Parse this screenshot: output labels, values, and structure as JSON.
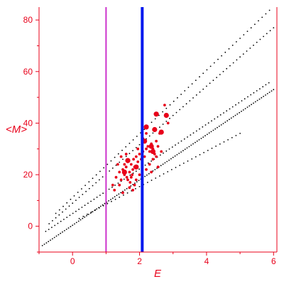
{
  "chart_data": {
    "type": "scatter",
    "xlabel": "E",
    "ylabel": "<M>",
    "xlim": [
      -1.0,
      6.1
    ],
    "ylim": [
      -10,
      85
    ],
    "x_ticks": [
      0,
      2,
      4,
      6
    ],
    "y_ticks": [
      0,
      20,
      40,
      60,
      80
    ],
    "grid": false,
    "legend": "none",
    "colors": {
      "axes": "#e8001a",
      "background_points": "#000000",
      "highlight_points": "#e8001a",
      "line_magenta": "#cc33cc",
      "line_blue": "#0018ee"
    },
    "vertical_lines": [
      {
        "x": 1.0,
        "color": "#cc33cc",
        "style": "thin"
      },
      {
        "x": 2.08,
        "color": "#0018ee",
        "style": "thick"
      }
    ],
    "series": [
      {
        "marker": "small-dot",
        "color": "#000000",
        "bands": [
          {
            "x_start": -0.9,
            "x_end": 6.0,
            "y_start": -7.5,
            "y_end": 53.0,
            "step": 0.06
          },
          {
            "x_start": -0.8,
            "x_end": 5.9,
            "y_start": -2.0,
            "y_end": 56.0,
            "step": 0.09
          },
          {
            "x_start": -0.7,
            "x_end": 6.0,
            "y_start": 1.0,
            "y_end": 77.0,
            "step": 0.1
          },
          {
            "x_start": -0.5,
            "x_end": 5.9,
            "y_start": 5.0,
            "y_end": 84.0,
            "step": 0.11
          },
          {
            "x_start": 0.2,
            "x_end": 5.0,
            "y_start": 3.0,
            "y_end": 36.0,
            "step": 0.12
          }
        ]
      },
      {
        "marker": "red-dot",
        "color": "#e8001a",
        "points": [
          [
            1.3,
            19
          ],
          [
            1.4,
            21
          ],
          [
            1.45,
            18
          ],
          [
            1.5,
            22
          ],
          [
            1.55,
            20
          ],
          [
            1.6,
            23
          ],
          [
            1.62,
            19
          ],
          [
            1.65,
            25
          ],
          [
            1.7,
            21
          ],
          [
            1.72,
            17
          ],
          [
            1.75,
            24
          ],
          [
            1.78,
            20
          ],
          [
            1.8,
            22
          ],
          [
            1.82,
            26
          ],
          [
            1.85,
            23
          ],
          [
            1.9,
            27
          ],
          [
            1.95,
            25
          ],
          [
            2.0,
            28
          ],
          [
            2.05,
            26
          ],
          [
            2.1,
            29
          ],
          [
            2.15,
            27
          ],
          [
            2.2,
            30
          ],
          [
            2.25,
            31
          ],
          [
            2.3,
            29
          ],
          [
            2.35,
            32
          ],
          [
            2.4,
            30
          ],
          [
            2.45,
            28
          ],
          [
            2.5,
            33
          ],
          [
            2.55,
            31
          ],
          [
            2.6,
            36
          ],
          [
            1.2,
            16
          ],
          [
            1.25,
            14
          ],
          [
            1.35,
            24
          ],
          [
            1.5,
            13
          ],
          [
            1.7,
            15
          ],
          [
            1.9,
            18
          ],
          [
            2.0,
            20
          ],
          [
            2.2,
            22
          ],
          [
            2.3,
            24
          ],
          [
            2.4,
            26
          ],
          [
            2.55,
            23
          ],
          [
            2.65,
            29
          ],
          [
            1.45,
            27
          ],
          [
            1.55,
            24
          ],
          [
            1.65,
            18
          ],
          [
            1.85,
            16
          ],
          [
            2.1,
            34
          ],
          [
            2.35,
            21
          ],
          [
            1.95,
            30
          ],
          [
            2.5,
            27
          ],
          [
            1.4,
            16
          ],
          [
            1.6,
            28
          ],
          [
            1.75,
            19
          ],
          [
            1.8,
            14
          ],
          [
            2.2,
            36
          ],
          [
            2.75,
            47
          ],
          [
            2.85,
            40
          ]
        ],
        "large_points": [
          [
            2.5,
            43.5
          ],
          [
            2.2,
            38.5
          ],
          [
            2.45,
            37.5
          ],
          [
            2.65,
            36.5
          ],
          [
            1.65,
            25.5
          ],
          [
            2.15,
            33
          ],
          [
            2.35,
            31
          ],
          [
            1.55,
            21
          ],
          [
            1.9,
            23
          ],
          [
            2.4,
            29
          ],
          [
            2.8,
            43
          ]
        ]
      }
    ]
  }
}
